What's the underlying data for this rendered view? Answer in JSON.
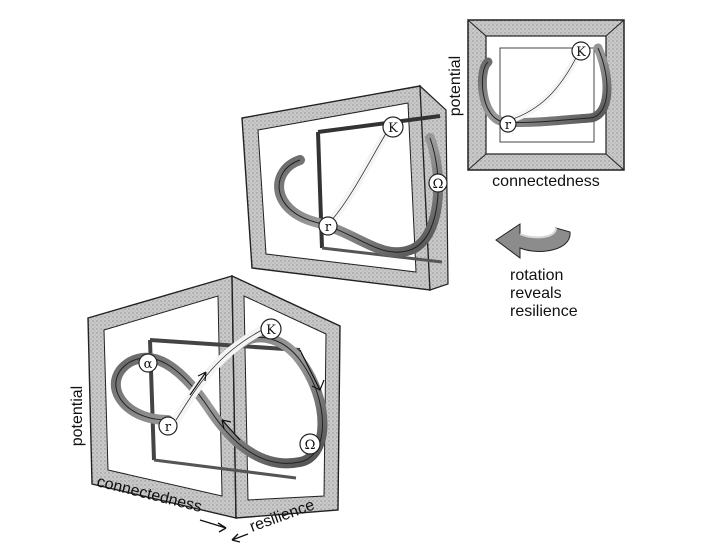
{
  "labels": {
    "top_y_axis": "potential",
    "top_x_axis": "connectedness",
    "bottom_y_axis": "potential",
    "bottom_x_axis": "connectedness",
    "bottom_z_axis": "resilience",
    "rotation_line1": "rotation",
    "rotation_line2": "reveals",
    "rotation_line3": "resilience"
  },
  "phases": {
    "K": "K",
    "r": "r",
    "omega": "Ω",
    "alpha": "α"
  },
  "colors": {
    "frame_fill": "#cfcfcf",
    "frame_stroke": "#222222",
    "ribbon_dark": "#7a7a7a",
    "ribbon_light": "#f2f2f2",
    "arrow_fill": "#8c8c8c"
  }
}
